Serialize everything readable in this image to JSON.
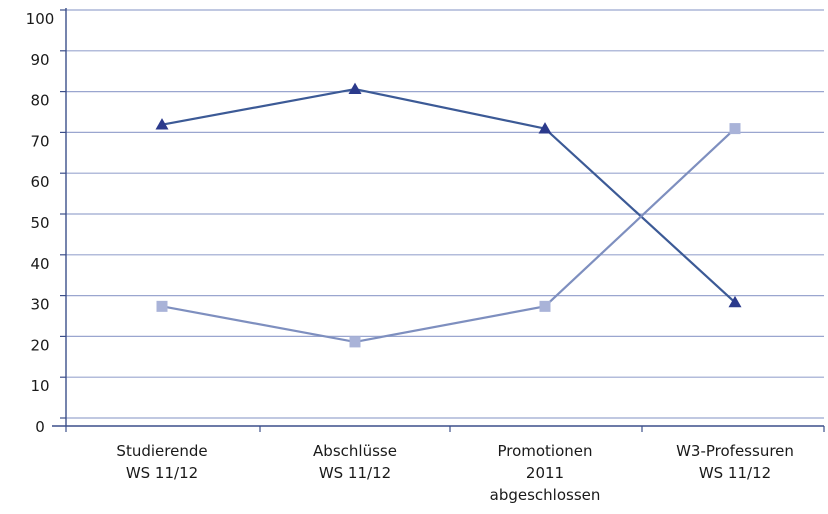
{
  "chart_data": {
    "type": "line",
    "categories": [
      [
        "Studierende",
        "WS 11/12"
      ],
      [
        "Abschlüsse",
        "WS 11/12"
      ],
      [
        "Promotionen",
        "2011",
        "abgeschlossen"
      ],
      [
        "W3-Professuren",
        "WS 11/12"
      ]
    ],
    "yticks": [
      "0",
      "10",
      "20",
      "30",
      "40",
      "50",
      "60",
      "70",
      "80",
      "90",
      "100"
    ],
    "ylim": [
      0,
      100
    ],
    "grid": true,
    "series": [
      {
        "marker": "triangle",
        "color": "#2b3a8c",
        "line_color": "#3c5a96",
        "values": [
          73,
          82,
          72,
          28
        ]
      },
      {
        "marker": "square",
        "color": "#a9b3d8",
        "line_color": "#7e8fbf",
        "values": [
          27,
          18,
          27,
          72
        ]
      }
    ],
    "colors": {
      "axis": "#3c4f8a",
      "grid": "#9aa6cf"
    }
  }
}
